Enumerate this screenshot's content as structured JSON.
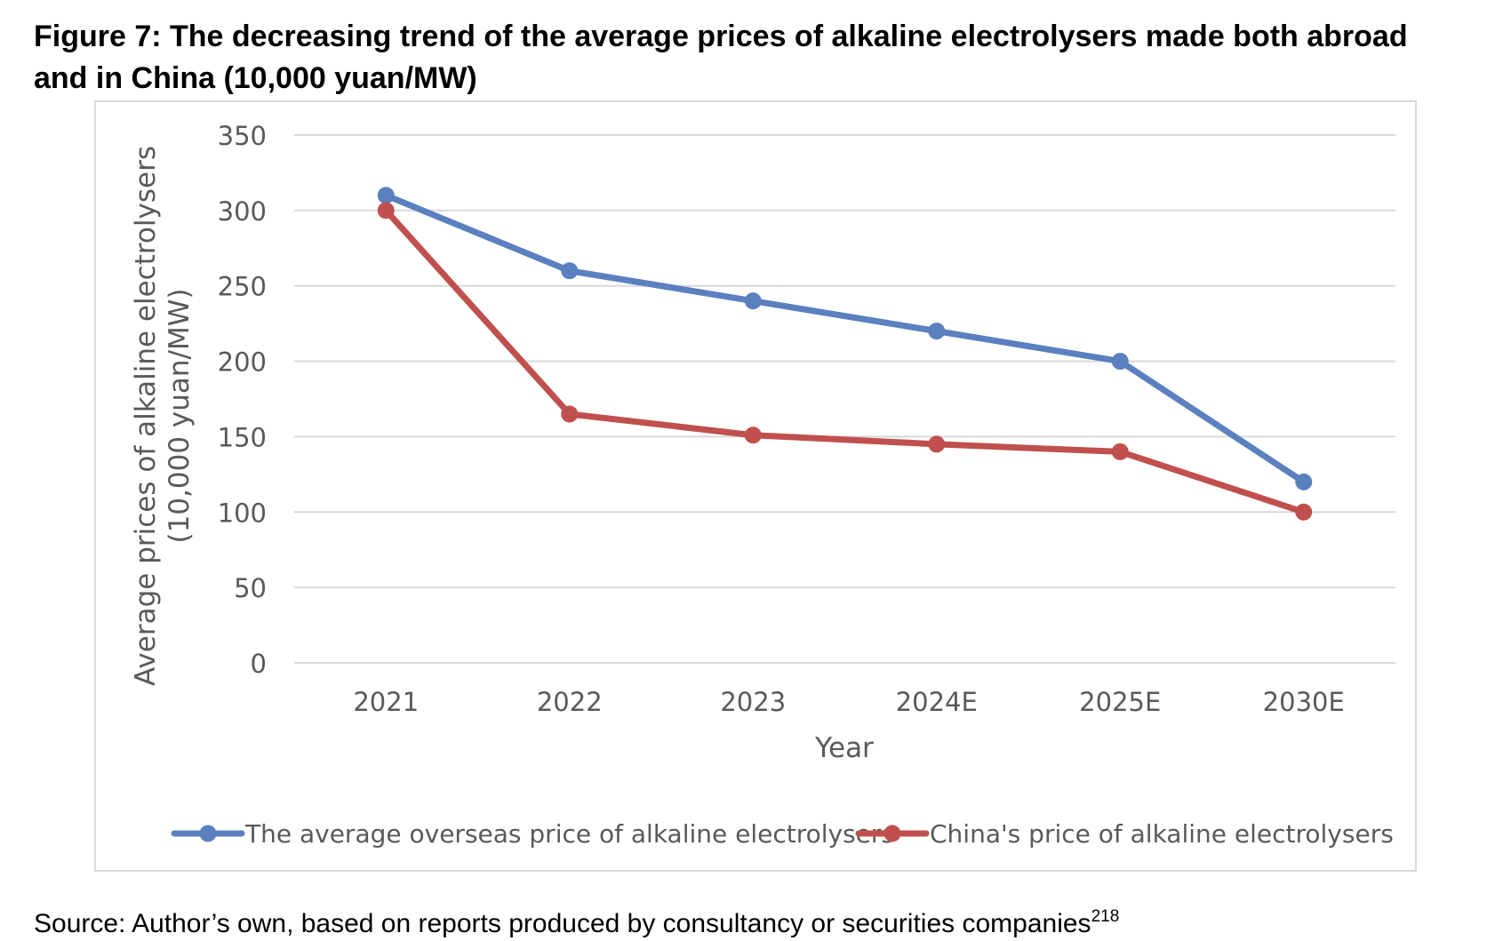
{
  "figure": {
    "title": "Figure 7: The decreasing trend of the average prices of alkaline electrolysers made both abroad and in China (10,000 yuan/MW)",
    "source": "Source: Author’s own, based on reports produced by consultancy or securities companies",
    "source_footnote": "218"
  },
  "chart_data": {
    "type": "line",
    "categories": [
      "2021",
      "2022",
      "2023",
      "2024E",
      "2025E",
      "2030E"
    ],
    "series": [
      {
        "name": "The average overseas price of alkaline electrolysers",
        "color": "#5b80bf",
        "values": [
          310,
          260,
          240,
          220,
          200,
          120
        ]
      },
      {
        "name": "China's price of alkaline electrolysers",
        "color": "#c0504d",
        "values": [
          300,
          165,
          151,
          145,
          140,
          100
        ]
      }
    ],
    "xlabel": "Year",
    "ylabel_lines": [
      "Average prices of alkaline electrolysers",
      "(10,000 yuan/MW)"
    ],
    "ylim": [
      0,
      350
    ],
    "yticks": [
      0,
      50,
      100,
      150,
      200,
      250,
      300,
      350
    ],
    "grid": true,
    "legend_position": "bottom"
  }
}
